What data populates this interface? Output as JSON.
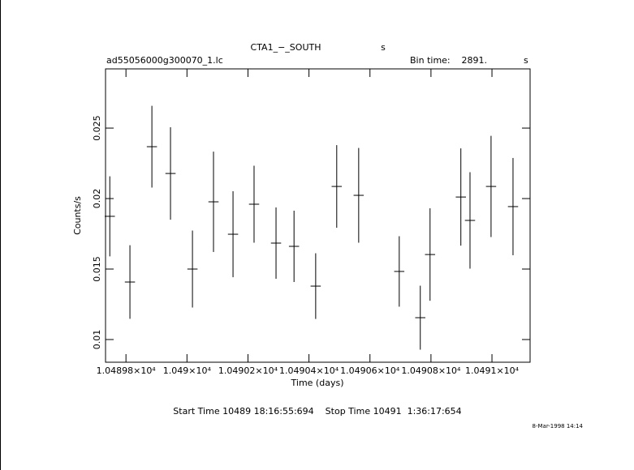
{
  "chart_data": {
    "type": "errorbar",
    "title": "CTA1_−_SOUTH",
    "title_suffix": "s",
    "file_name": "ad55056000g300070_1.lc",
    "bin_time_label": "Bin time:",
    "bin_time": "2891.",
    "bin_time_unit": "s",
    "xlabel": "Time (days)",
    "ylabel": "Counts/s",
    "footer": "Start Time 10489 18:16:55:694    Stop Time 10491  1:36:17:654",
    "date_stamp": "8-Mar-1998 14:14",
    "color": "#000000",
    "xlim": [
      10489.733,
      10491.125
    ],
    "ylim": [
      0.00839,
      0.0292
    ],
    "xticks": [
      {
        "value": 10489.8,
        "label": "1.04898×10⁴"
      },
      {
        "value": 10490.0,
        "label": "1.049×10⁴"
      },
      {
        "value": 10490.2,
        "label": "1.04902×10⁴"
      },
      {
        "value": 10490.4,
        "label": "1.04904×10⁴"
      },
      {
        "value": 10490.6,
        "label": "1.04906×10⁴"
      },
      {
        "value": 10490.8,
        "label": "1.04908×10⁴"
      },
      {
        "value": 10491.0,
        "label": "1.0491×10⁴"
      }
    ],
    "yticks": [
      0.01,
      0.015,
      0.02,
      0.025
    ],
    "x": [
      10489.747,
      10489.813,
      10489.885,
      10489.946,
      10490.018,
      10490.087,
      10490.151,
      10490.22,
      10490.292,
      10490.351,
      10490.422,
      10490.491,
      10490.563,
      10490.696,
      10490.765,
      10490.797,
      10490.898,
      10490.928,
      10490.997,
      10491.069
    ],
    "xerr": 0.0167,
    "values": [
      0.01874,
      0.01408,
      0.02368,
      0.02178,
      0.015,
      0.01977,
      0.01747,
      0.0196,
      0.01684,
      0.01661,
      0.01379,
      0.02086,
      0.02023,
      0.01483,
      0.01155,
      0.01603,
      0.02011,
      0.01845,
      0.02086,
      0.01943
    ],
    "errors": [
      0.00284,
      0.00261,
      0.0029,
      0.00328,
      0.00273,
      0.00356,
      0.00305,
      0.00273,
      0.00253,
      0.00253,
      0.00233,
      0.00293,
      0.00336,
      0.0025,
      0.00227,
      0.00328,
      0.00345,
      0.00342,
      0.00359,
      0.00345
    ]
  }
}
